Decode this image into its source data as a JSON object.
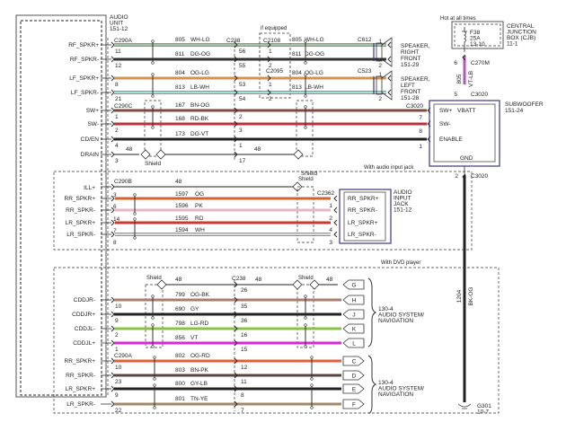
{
  "audio_unit": {
    "lines": [
      "AUDIO",
      "UNIT",
      "151-12"
    ]
  },
  "colors": {
    "drain": "#222222",
    "box": "#3a3a7a"
  },
  "section1": {
    "connector_left_a": "C290A",
    "connector_left_c": "C290C",
    "connector_mid": "C238",
    "optional_label": "if equipped",
    "connector_c2108": "C2108",
    "connector_c2095": "C2095",
    "connector_c612": "C612",
    "connector_c523": "C523",
    "connector_c3020": "C3020",
    "shield_label": "Shield",
    "shield_label_2": "Shield",
    "drain_circuit_right": "48",
    "rows": [
      {
        "signal": "RF_SPKR+",
        "pin": "11",
        "circuit": "805",
        "code": "WH-LG",
        "color": "#9cc79c",
        "mid_pin": "56",
        "opt_pin": "1",
        "end_pin": "1"
      },
      {
        "signal": "RF_SPKR-",
        "pin": "12",
        "circuit": "811",
        "code": "DG-OG",
        "color": "#333333",
        "mid_pin": "55",
        "opt_pin": "2",
        "end_pin": "2"
      },
      {
        "signal": "LF_SPKR+",
        "pin": "8",
        "circuit": "804",
        "code": "OG-LG",
        "color": "#d4914f",
        "mid_pin": "53",
        "opt_pin": "1",
        "end_pin": "1"
      },
      {
        "signal": "LF_SPKR-",
        "pin": "21",
        "circuit": "813",
        "code": "LB-WH",
        "color": "#a6dde0",
        "mid_pin": "54",
        "opt_pin": "2",
        "end_pin": "2"
      },
      {
        "signal": "SW+",
        "pin": "1",
        "circuit": "167",
        "code": "BN-OG",
        "color": "#7d4b42",
        "mid_pin": "2",
        "end_pin": "7"
      },
      {
        "signal": "SW-",
        "pin": "2",
        "circuit": "168",
        "code": "RD-BK",
        "color": "#b8323a",
        "mid_pin": "3",
        "end_pin": "8"
      },
      {
        "signal": "CD/EN",
        "pin": "4",
        "circuit": "173",
        "code": "DG-VT",
        "color": "#222222",
        "mid_pin": "1",
        "end_pin": "1"
      },
      {
        "signal": "DRAIN",
        "pin": "3",
        "circuit": "48",
        "code": "",
        "color": "#222222",
        "mid_pin": "17"
      }
    ],
    "speaker_right": [
      "SPEAKER,",
      "RIGHT",
      "FRONT",
      "151-29"
    ],
    "speaker_left": [
      "SPEAKER,",
      "LEFT",
      "FRONT",
      "151-28"
    ]
  },
  "power": {
    "hot_label": "Hot at all times",
    "cjb": [
      "CENTRAL",
      "JUNCTION",
      "BOX (CJB)",
      "11-1"
    ],
    "fuse": [
      "F38",
      "25A",
      "13-10"
    ],
    "connector_top": "C270M",
    "connector_top_pin": "6",
    "circuit": "805",
    "code": "VT-LB",
    "wire_color": "#b05ab8",
    "connector_bottom": "C3020",
    "connector_bottom_pin": "5"
  },
  "subwoofer": {
    "title": [
      "SUBWOOFER",
      "151-24"
    ],
    "pins": [
      "SW+",
      "SW-",
      "ENABLE"
    ],
    "vbatt": "VBATT",
    "gnd": "GND",
    "gnd_connector": "C3020",
    "gnd_pin": "2",
    "gnd_circuit": "1204",
    "gnd_code": "BK-OG",
    "ground": [
      "G301",
      "10-7"
    ]
  },
  "section2": {
    "title": "With audio input jack",
    "connector_left": "C290B",
    "connector_right": "C2362",
    "shield_label": "Shield",
    "ill": {
      "signal": "ILL+",
      "circuit": "48"
    },
    "extra_left_pin": "8",
    "extra_right_pin": "3",
    "rows": [
      {
        "signal": "RR_SPKR+",
        "pin": "3",
        "circuit": "1597",
        "code": "OG",
        "color": "#d2632e",
        "end_pin": "",
        "jack": "RR_SPKR+"
      },
      {
        "signal": "RR_SPKR-",
        "pin": "6",
        "circuit": "1596",
        "code": "PK",
        "color": "#e8b4c8",
        "end_pin": "1",
        "jack": "RR_SPKR-"
      },
      {
        "signal": "LR_SPKR+",
        "pin": "14",
        "circuit": "1595",
        "code": "RD",
        "color": "#c83a32",
        "end_pin": "2",
        "jack": "LR_SPKR+"
      },
      {
        "signal": "LR_SPKR-",
        "pin": "7",
        "circuit": "1594",
        "code": "WH",
        "color": "#dddddd",
        "end_pin": "4",
        "jack": "LR_SPKR-"
      }
    ],
    "device": [
      "AUDIO",
      "INPUT",
      "JACK",
      "151-12"
    ]
  },
  "section3": {
    "title": "With DVD player",
    "shield_label_1": "Shield",
    "shield_label_2": "Shield",
    "connector_mid": "C238",
    "connector_left": "C290A",
    "shield_row": {
      "circuit_a": "48",
      "circuit_b": "48",
      "circuit_c": "48",
      "mid_pin": "26",
      "letter": "G"
    },
    "rows": [
      {
        "signal": "CDDJR-",
        "pin": "10",
        "circuit": "799",
        "code": "OG-BK",
        "color": "#a87e72",
        "mid_pin": "35",
        "letter": "H"
      },
      {
        "signal": "CDDJR+",
        "pin": "9",
        "circuit": "690",
        "code": "GY",
        "color": "#222222",
        "mid_pin": "36",
        "letter": "J"
      },
      {
        "signal": "CDDJL-",
        "pin": "2",
        "circuit": "798",
        "code": "LG-RD",
        "color": "#8cc04a",
        "mid_pin": "16",
        "letter": "K"
      },
      {
        "signal": "CDDJL+",
        "pin": "1",
        "circuit": "856",
        "code": "VT",
        "color": "#d82ad8",
        "mid_pin": "15",
        "letter": "L"
      },
      {
        "signal": "RR_SPKR+",
        "pin": "10",
        "circuit": "802",
        "code": "OG-RD",
        "color": "#e0603a",
        "mid_pin": "12",
        "letter": "C"
      },
      {
        "signal": "RR_SPKR-",
        "pin": "23",
        "circuit": "803",
        "code": "BN-PK",
        "color": "#5a4440",
        "mid_pin": "11",
        "letter": "D"
      },
      {
        "signal": "LR_SPKR+",
        "pin": "9",
        "circuit": "800",
        "code": "GY-LB",
        "color": "#222222",
        "mid_pin": "8",
        "letter": "E"
      },
      {
        "signal": "LR_SPKR-",
        "pin": "22",
        "circuit": "801",
        "code": "TN-YE",
        "color": "#a08a6a",
        "mid_pin": "7",
        "letter": "F"
      }
    ],
    "device_a": [
      "130-4",
      "AUDIO SYSTEM/",
      "NAVIGATION"
    ],
    "device_b": [
      "130-4",
      "AUDIO SYSTEM/",
      "NAVIGATION"
    ]
  }
}
